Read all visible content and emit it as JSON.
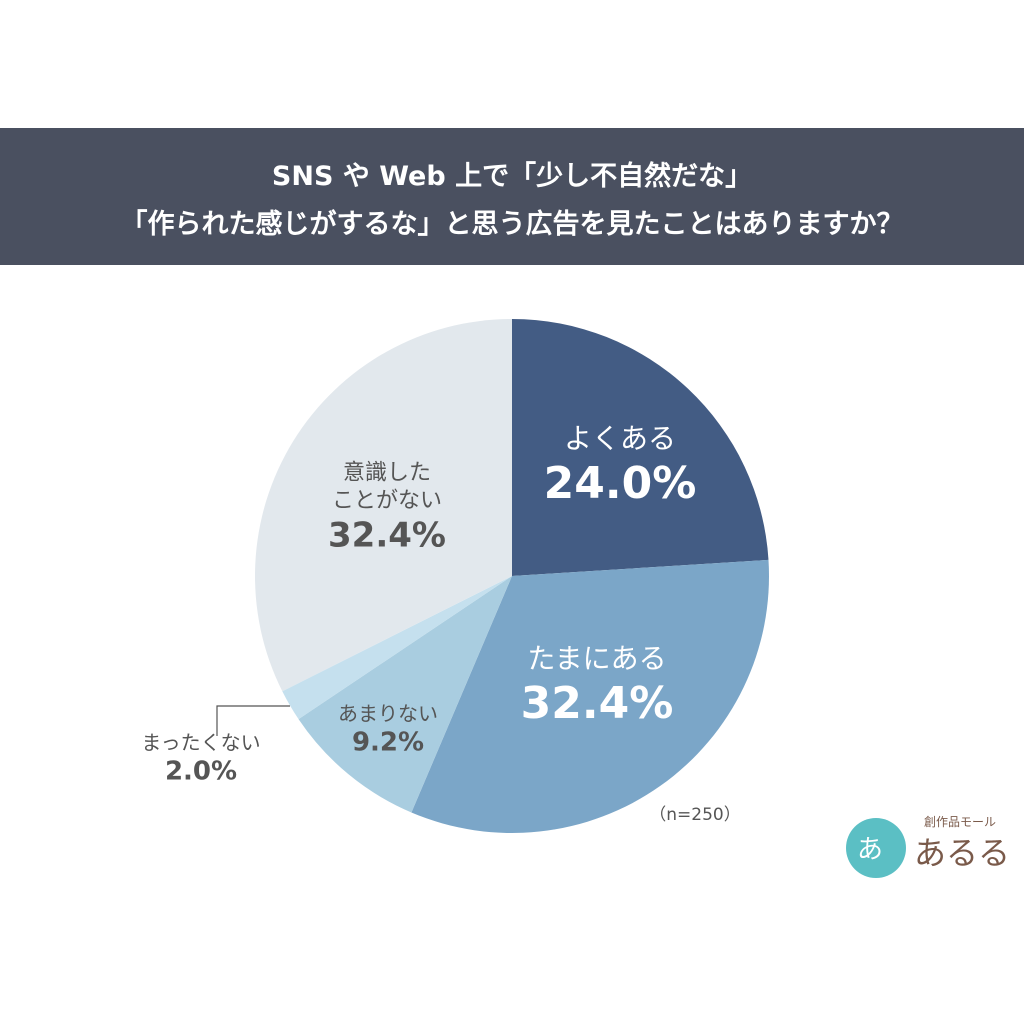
{
  "chart_data": {
    "type": "pie",
    "title": [
      "SNS や Web 上で「少し不自然だな」",
      "「作られた感じがするな」と思う広告を見たことはありますか？"
    ],
    "categories": [
      "よくある",
      "たまにある",
      "あまりない",
      "まったくない",
      "意識した\nことがない"
    ],
    "values": [
      24.0,
      32.4,
      9.2,
      2.0,
      32.4
    ],
    "value_labels": [
      "24.0%",
      "32.4%",
      "9.2%",
      "2.0%",
      "32.4%"
    ],
    "colors": [
      "#435c84",
      "#7ba6c8",
      "#a9cde0",
      "#c5e0ee",
      "#e2e8ed"
    ],
    "note": "（n=250）",
    "logo": {
      "tagline": "創作品モール",
      "name": "あるる",
      "mark": "あ"
    }
  }
}
